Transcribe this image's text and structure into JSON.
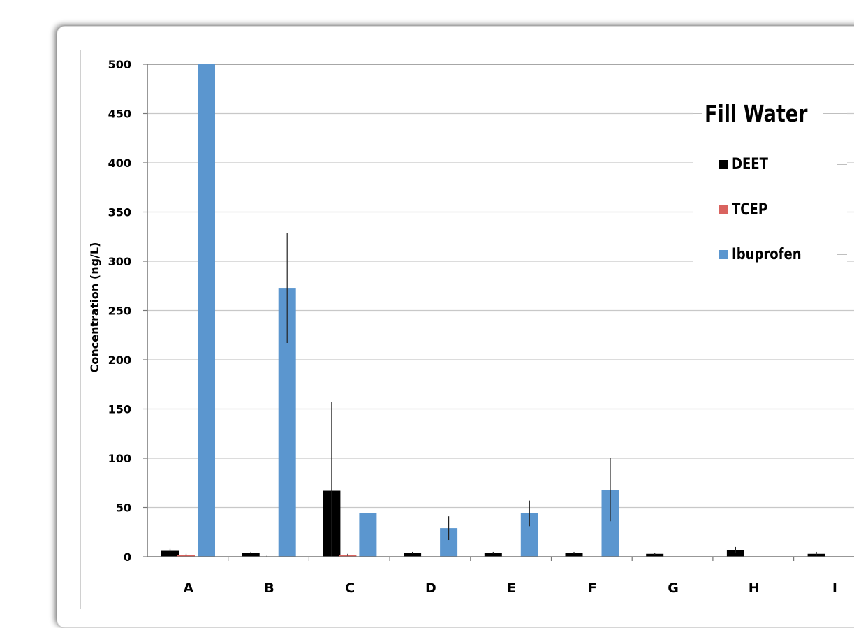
{
  "chart_data": {
    "type": "bar",
    "title": "",
    "xlabel": "",
    "ylabel": "Concentration (ng/L)",
    "ylim": [
      0,
      500
    ],
    "yticks": [
      0,
      50,
      100,
      150,
      200,
      250,
      300,
      350,
      400,
      450,
      500
    ],
    "categories": [
      "A",
      "B",
      "C",
      "D",
      "E",
      "F",
      "G",
      "H",
      "I"
    ],
    "grid": true,
    "legend": {
      "title": "Fill Water",
      "placement": "top-right"
    },
    "series": [
      {
        "name": "DEET",
        "color": "#000000",
        "values": [
          6,
          4,
          67,
          4,
          4,
          4,
          3,
          7,
          3
        ],
        "errors": [
          2,
          1,
          90,
          1,
          1,
          1,
          1,
          3,
          2
        ]
      },
      {
        "name": "TCEP",
        "color": "#d9635f",
        "values": [
          2,
          0,
          2,
          0,
          0,
          0,
          0,
          0,
          0
        ],
        "errors": [
          1,
          1,
          1,
          0,
          0,
          0,
          0,
          0,
          0
        ]
      },
      {
        "name": "Ibuprofen",
        "color": "#5b96cf",
        "values": [
          500,
          273,
          44,
          29,
          44,
          68,
          0,
          0,
          0
        ],
        "errors": [
          0,
          56,
          0,
          12,
          13,
          32,
          0,
          0,
          0
        ]
      }
    ]
  }
}
